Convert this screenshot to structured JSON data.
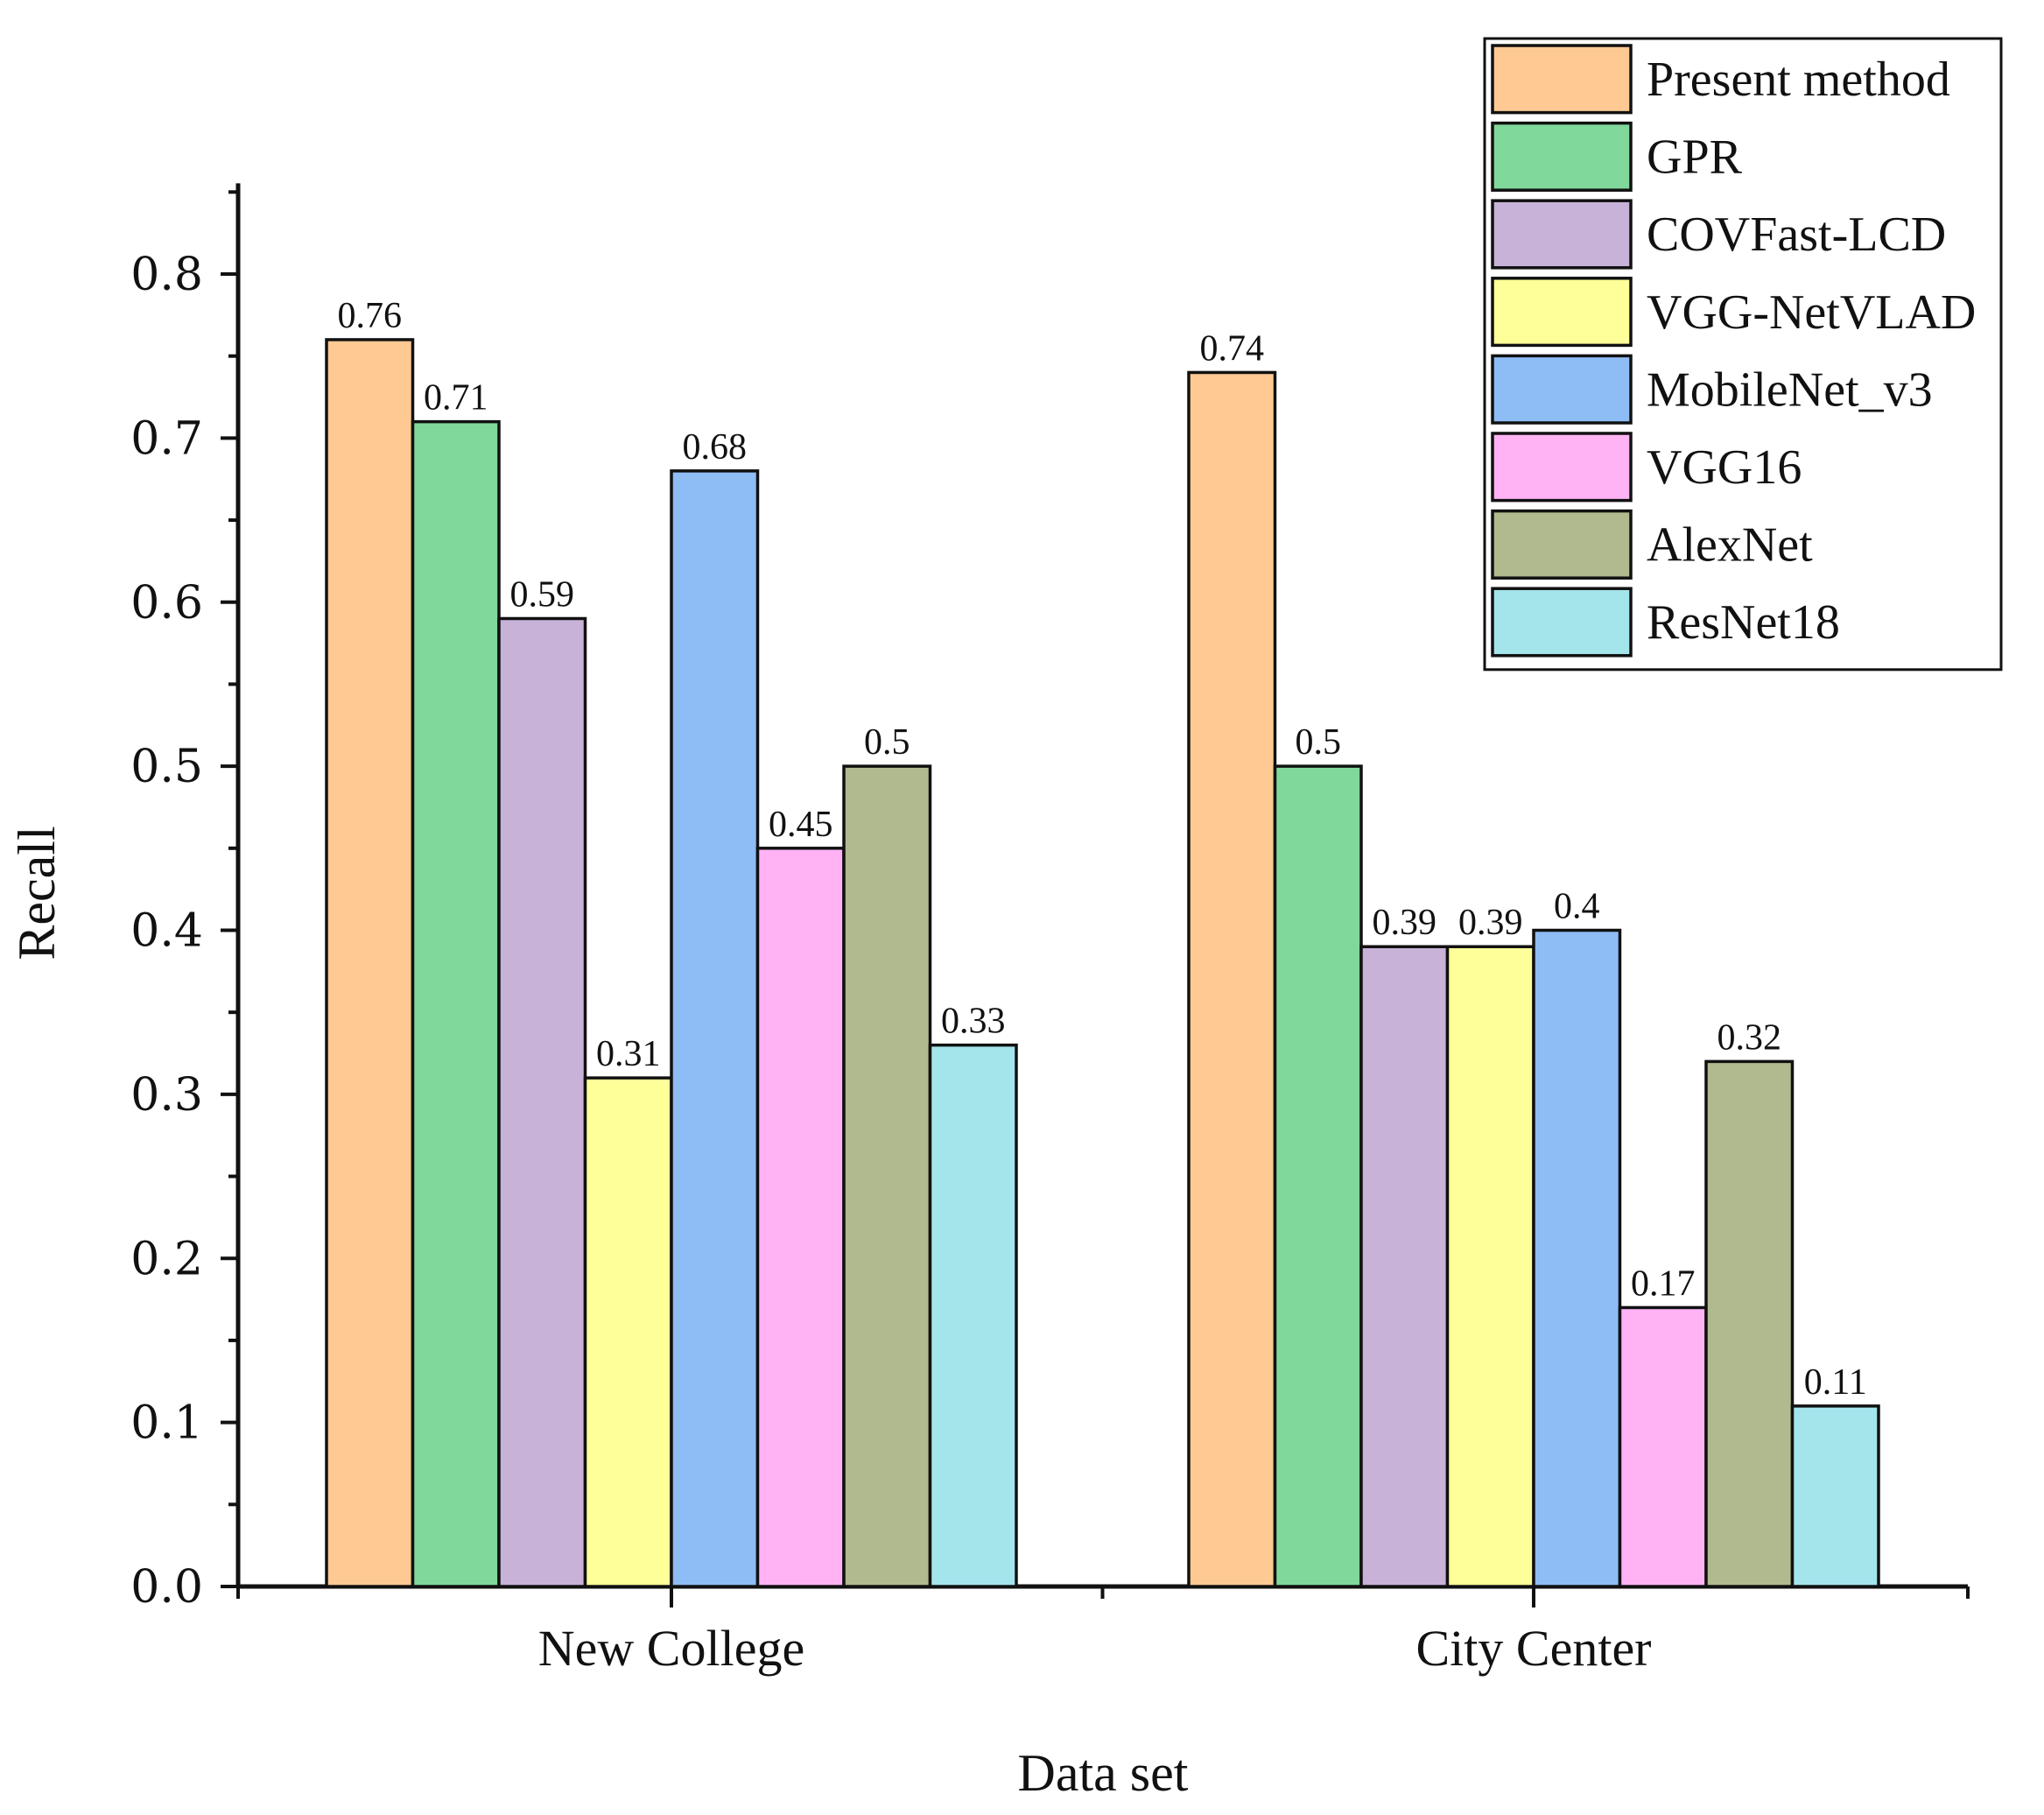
{
  "chart_data": {
    "type": "bar",
    "title": "",
    "xlabel": "Data set",
    "ylabel": "Recall",
    "ylim": [
      0,
      0.85
    ],
    "yticks": [
      "0.0",
      "0.1",
      "0.2",
      "0.3",
      "0.4",
      "0.5",
      "0.6",
      "0.7",
      "0.8"
    ],
    "ytick_values": [
      0,
      0.1,
      0.2,
      0.3,
      0.4,
      0.5,
      0.6,
      0.7,
      0.8
    ],
    "categories": [
      "New College",
      "City Center"
    ],
    "legend_position": "top-right",
    "series": [
      {
        "name": "Present method",
        "color": "#FFC993",
        "values": [
          0.76,
          0.74
        ]
      },
      {
        "name": "GPR",
        "color": "#80D89B",
        "values": [
          0.71,
          0.5
        ]
      },
      {
        "name": "COVFast-LCD",
        "color": "#C8B2D8",
        "values": [
          0.59,
          0.39
        ]
      },
      {
        "name": "VGG-NetVLAD",
        "color": "#FFFF99",
        "values": [
          0.31,
          0.39
        ]
      },
      {
        "name": "MobileNet_v3",
        "color": "#8EBCF5",
        "values": [
          0.68,
          0.4
        ]
      },
      {
        "name": "VGG16",
        "color": "#FFB3F5",
        "values": [
          0.45,
          0.17
        ]
      },
      {
        "name": "AlexNet",
        "color": "#B1B98F",
        "values": [
          0.5,
          0.32
        ]
      },
      {
        "name": "ResNet18",
        "color": "#A4E5EC",
        "values": [
          0.33,
          0.11
        ]
      }
    ],
    "data_labels": [
      [
        "0.76",
        "0.74"
      ],
      [
        "0.71",
        "0.5"
      ],
      [
        "0.59",
        "0.39"
      ],
      [
        "0.31",
        "0.39"
      ],
      [
        "0.68",
        "0.4"
      ],
      [
        "0.45",
        "0.17"
      ],
      [
        "0.5",
        "0.32"
      ],
      [
        "0.33",
        "0.11"
      ]
    ]
  }
}
